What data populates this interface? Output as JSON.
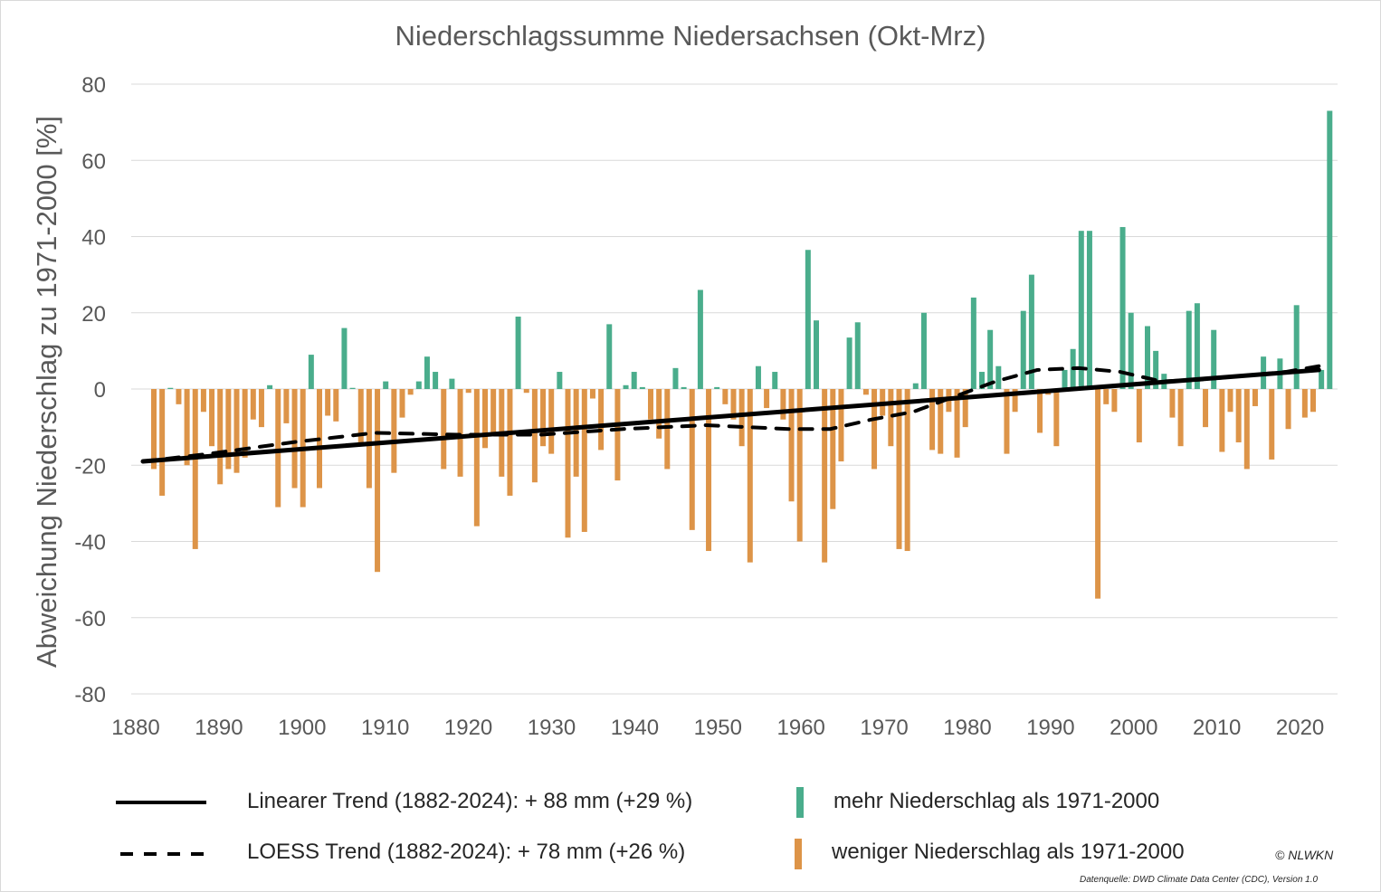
{
  "chart_data": {
    "type": "bar",
    "title": "Niederschlagssumme Niedersachsen (Okt-Mrz)",
    "xlabel": "",
    "ylabel": "Abweichung Niederschlag zu 1971-2000 [%]",
    "ylim": [
      -80,
      80
    ],
    "yticks": [
      80,
      60,
      40,
      20,
      0,
      -20,
      -40,
      -60,
      -80
    ],
    "xticks": [
      1880,
      1890,
      1900,
      1910,
      1920,
      1930,
      1940,
      1950,
      1960,
      1970,
      1980,
      1990,
      2000,
      2010,
      2020
    ],
    "grid": true,
    "start_year": 1882,
    "end_year": 2024,
    "values": [
      -21,
      -28,
      0.3,
      -4,
      -20,
      -42,
      -6,
      -15,
      -25,
      -21,
      -22,
      -18,
      -8,
      -10,
      1,
      -31,
      -9,
      -26,
      -31,
      9,
      -26,
      -7,
      -8.5,
      16,
      0.3,
      -15,
      -26,
      -48,
      2,
      -22,
      -7.5,
      -1.5,
      2,
      8.5,
      4.5,
      -21,
      2.7,
      -23,
      -1,
      -36,
      -15.5,
      -12,
      -23,
      -28,
      19,
      -1,
      -24.5,
      -15,
      -17,
      4.5,
      -39,
      -23,
      -37.5,
      -2.5,
      -16,
      17,
      -24,
      1,
      4.5,
      0.5,
      -8,
      -13,
      -21,
      5.5,
      0.5,
      -37,
      26,
      -42.5,
      0.5,
      -4,
      -8,
      -15,
      -45.5,
      6,
      -5,
      4.5,
      -8,
      -29.5,
      -40,
      36.5,
      18,
      -45.5,
      -31.5,
      -19,
      13.5,
      17.5,
      -1.5,
      -21,
      -7,
      -15,
      -42,
      -42.5,
      1.5,
      20,
      -16,
      -17,
      -6,
      -18,
      -10,
      24,
      4.5,
      15.5,
      6,
      -17,
      -6,
      20.5,
      30,
      -11.5,
      -1.5,
      -15,
      5,
      10.5,
      41.5,
      41.5,
      -55,
      -4,
      -6,
      42.5,
      20,
      -14,
      16.5,
      10,
      4,
      -7.5,
      -15,
      20.5,
      22.5,
      -10,
      15.5,
      -16.5,
      -6,
      -14,
      -21,
      -4.5,
      8.5,
      -18.5,
      8,
      -10.5,
      22,
      -7.5,
      -6,
      5,
      73
    ],
    "series": [
      {
        "name": "mehr Niederschlag als 1971-2000",
        "kind": "bar-positive",
        "color": "#4aad8c"
      },
      {
        "name": "weniger Niederschlag als 1971-2000",
        "kind": "bar-negative",
        "color": "#dd9448"
      },
      {
        "name": "Linearer Trend (1882-2024): + 88 mm (+29 %)",
        "kind": "line-solid",
        "color": "#000000",
        "x": [
          1882,
          2024
        ],
        "y": [
          -19,
          5
        ]
      },
      {
        "name": "LOESS Trend (1882-2024): + 78 mm (+26 %)",
        "kind": "line-dashed",
        "color": "#000000",
        "x": [
          1882,
          1890,
          1900,
          1910,
          1920,
          1930,
          1940,
          1950,
          1960,
          1965,
          1970,
          1975,
          1980,
          1985,
          1990,
          1995,
          2000,
          2005,
          2010,
          2015,
          2020,
          2024
        ],
        "y": [
          -19,
          -17,
          -14,
          -11.5,
          -12,
          -12,
          -10.5,
          -9.5,
          -10.5,
          -10.5,
          -8,
          -6,
          -2,
          2,
          5,
          5.5,
          4.5,
          2,
          2.5,
          3.5,
          4.5,
          6
        ]
      }
    ],
    "legend_position": "bottom"
  },
  "credits": {
    "copyright": "© NLWKN",
    "source": "Datenquelle: DWD Climate Data Center (CDC), Version 1.0"
  }
}
